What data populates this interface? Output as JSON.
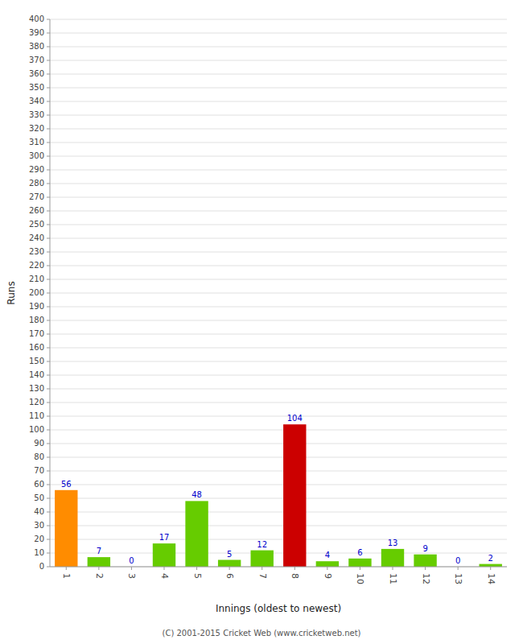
{
  "chart_data": {
    "type": "bar",
    "xlabel": "Innings (oldest to newest)",
    "ylabel": "Runs",
    "categories": [
      "1",
      "2",
      "3",
      "4",
      "5",
      "6",
      "7",
      "8",
      "9",
      "10",
      "11",
      "12",
      "13",
      "14"
    ],
    "values": [
      56,
      7,
      0,
      17,
      48,
      5,
      12,
      104,
      4,
      6,
      13,
      9,
      0,
      2
    ],
    "colors": [
      "#ff8c00",
      "#66cc00",
      "#66cc00",
      "#66cc00",
      "#66cc00",
      "#66cc00",
      "#66cc00",
      "#cc0000",
      "#66cc00",
      "#66cc00",
      "#66cc00",
      "#66cc00",
      "#66cc00",
      "#66cc00"
    ],
    "ylim": [
      0,
      400
    ],
    "yticks": [
      0,
      10,
      20,
      30,
      40,
      50,
      60,
      70,
      80,
      90,
      100,
      110,
      120,
      130,
      140,
      150,
      160,
      170,
      180,
      190,
      200,
      210,
      220,
      230,
      240,
      250,
      260,
      270,
      280,
      290,
      300,
      310,
      320,
      330,
      340,
      350,
      360,
      370,
      380,
      390,
      400
    ],
    "grid": true,
    "data_labels": true,
    "annotations": [
      "(C) 2001-2015 Cricket Web (www.cricketweb.net)"
    ]
  }
}
